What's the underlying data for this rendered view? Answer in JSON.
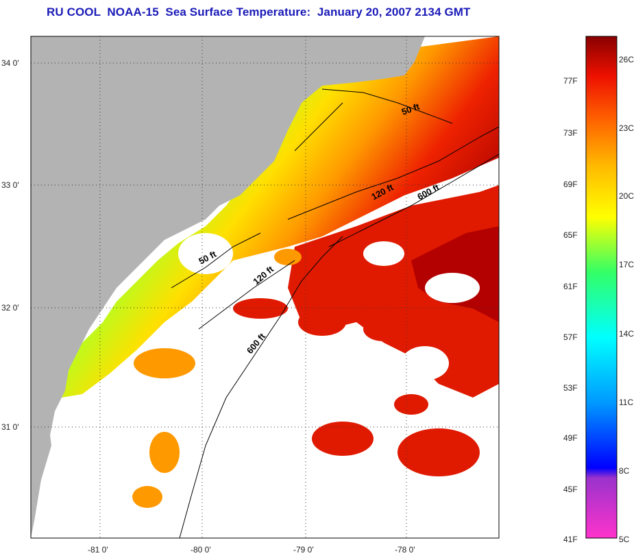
{
  "title": "RU COOL  NOAA-15  Sea Surface Temperature:  January 20, 2007 2134 GMT",
  "colors": {
    "land": "#b3b3b3",
    "no_data": "#ffffff",
    "title": "#1a1ab8"
  },
  "lat_labels": [
    "34 0'",
    "33 0'",
    "32 0'",
    "31 0'"
  ],
  "lon_labels": [
    "-81 0'",
    "-80 0'",
    "-79 0'",
    "-78 0'"
  ],
  "isobaths": [
    {
      "label": "50 ft"
    },
    {
      "label": "120 ft"
    },
    {
      "label": "600 ft"
    },
    {
      "label": "50 ft"
    },
    {
      "label": "120 ft"
    },
    {
      "label": "600 ft"
    }
  ],
  "colorbar": {
    "f_labels": [
      "77F",
      "73F",
      "69F",
      "65F",
      "61F",
      "57F",
      "53F",
      "49F",
      "45F",
      "41F"
    ],
    "c_labels": [
      "26C",
      "23C",
      "20C",
      "17C",
      "14C",
      "11C",
      "8C",
      "5C"
    ]
  }
}
